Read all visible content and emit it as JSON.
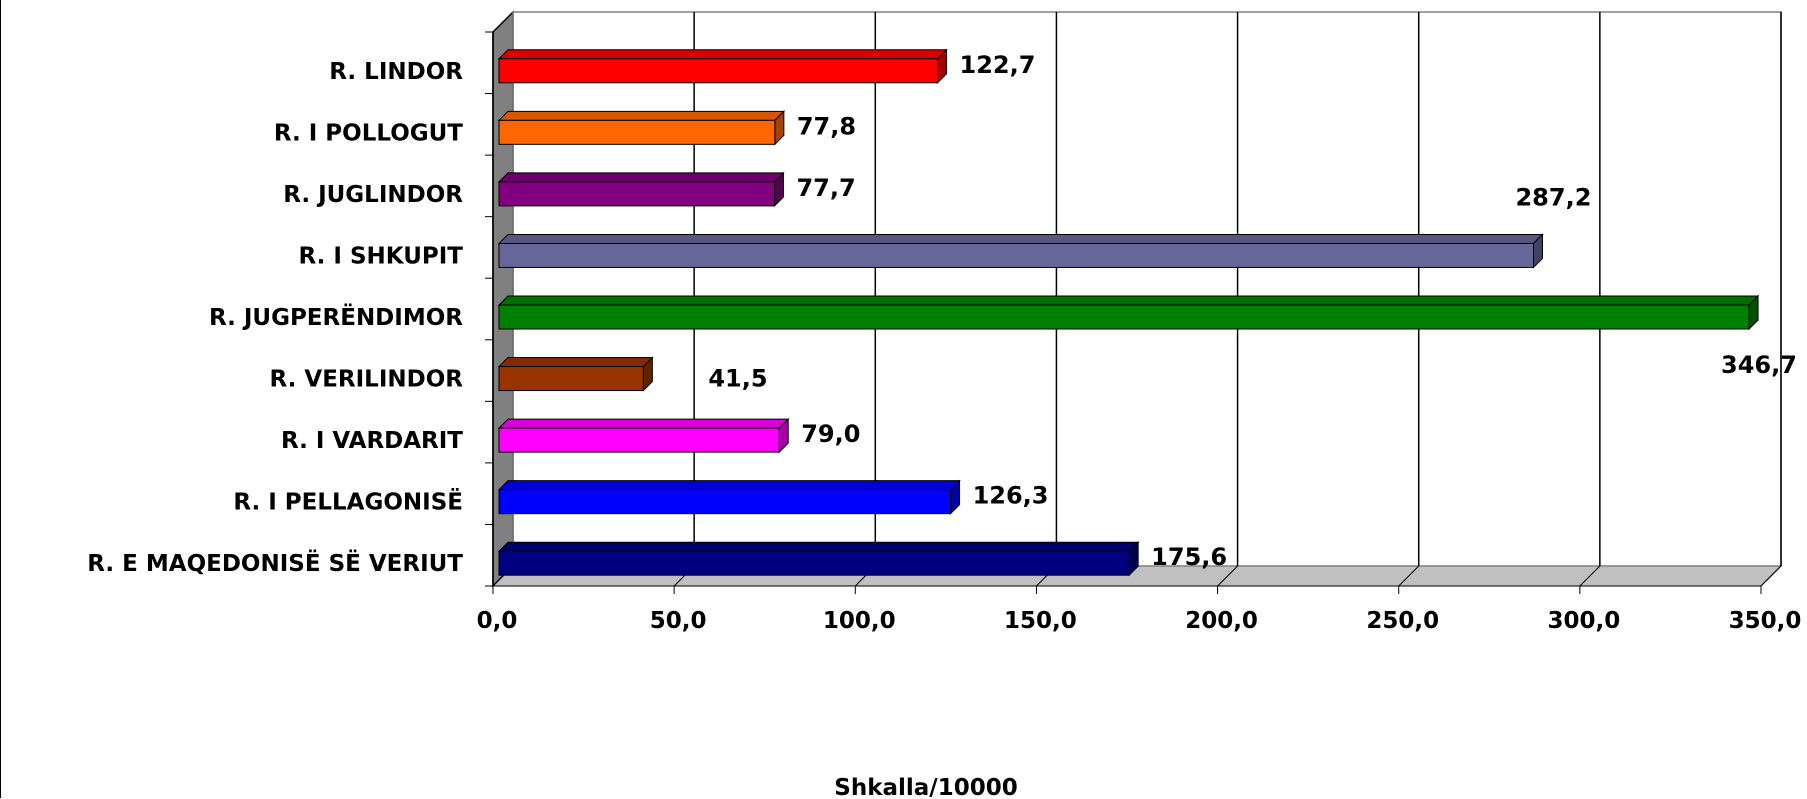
{
  "chart_data": {
    "type": "bar",
    "orientation": "horizontal",
    "style": "3d",
    "categories": [
      "R. LINDOR",
      "R. I POLLOGUT",
      "R. JUGLINDOR",
      "R. I SHKUPIT",
      "R. JUGPERËNDIMOR",
      "R. VERILINDOR",
      "R. I VARDARIT",
      "R. I PELLAGONISË",
      "R. E MAQEDONISË SË VERIUT"
    ],
    "values": [
      122.7,
      77.8,
      77.7,
      287.2,
      346.7,
      41.5,
      79.0,
      126.3,
      175.6
    ],
    "value_labels": [
      "122,7",
      "77,8",
      "77,7",
      "287,2",
      "346,7",
      "41,5",
      "79,0",
      "126,3",
      "175,6"
    ],
    "colors": [
      "#ff0000",
      "#ff6600",
      "#800080",
      "#666699",
      "#008000",
      "#993300",
      "#ff00ff",
      "#0000ff",
      "#000080"
    ],
    "xlim": [
      0,
      350
    ],
    "xticks": [
      0,
      50,
      100,
      150,
      200,
      250,
      300,
      350
    ],
    "xtick_labels": [
      "0,0",
      "50,0",
      "100,0",
      "150,0",
      "200,0",
      "250,0",
      "300,0",
      "350,0"
    ],
    "xlabel": "Shkalla/10000",
    "ylabel": "",
    "title": "",
    "grid": true,
    "legend": false
  }
}
